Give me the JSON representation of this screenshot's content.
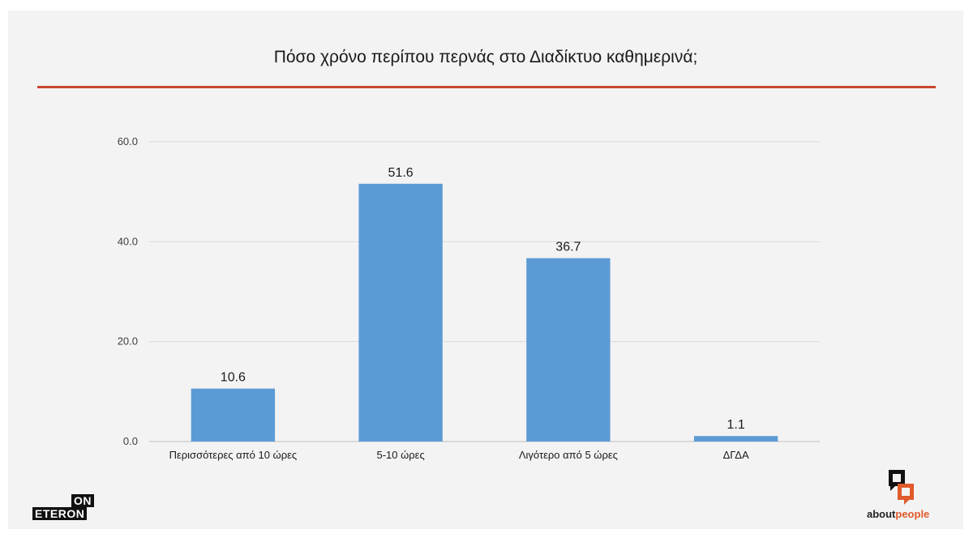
{
  "chart_data": {
    "type": "bar",
    "title": "Πόσο χρόνο περίπου περνάς στο Διαδίκτυο καθημερινά;",
    "categories": [
      "Περισσότερες από 10 ώρες",
      "5-10 ώρες",
      "Λιγότερο από 5 ώρες",
      "ΔΓΔΑ"
    ],
    "values": [
      10.6,
      51.6,
      36.7,
      1.1
    ],
    "data_labels": [
      "10.6",
      "51.6",
      "36.7",
      "1.1"
    ],
    "yticks": [
      "0.0",
      "20.0",
      "40.0",
      "60.0"
    ],
    "ytick_values": [
      0,
      20,
      40,
      60
    ],
    "ylim": [
      0,
      60
    ],
    "xlabel": "",
    "ylabel": "",
    "grid": true,
    "legend": "none",
    "bar_color": "#5b9bd5",
    "accent_color": "#c8472e"
  },
  "logos": {
    "left_top": "ON",
    "left_bottom": "ETERON",
    "right_word_a": "about",
    "right_word_b": "people"
  }
}
